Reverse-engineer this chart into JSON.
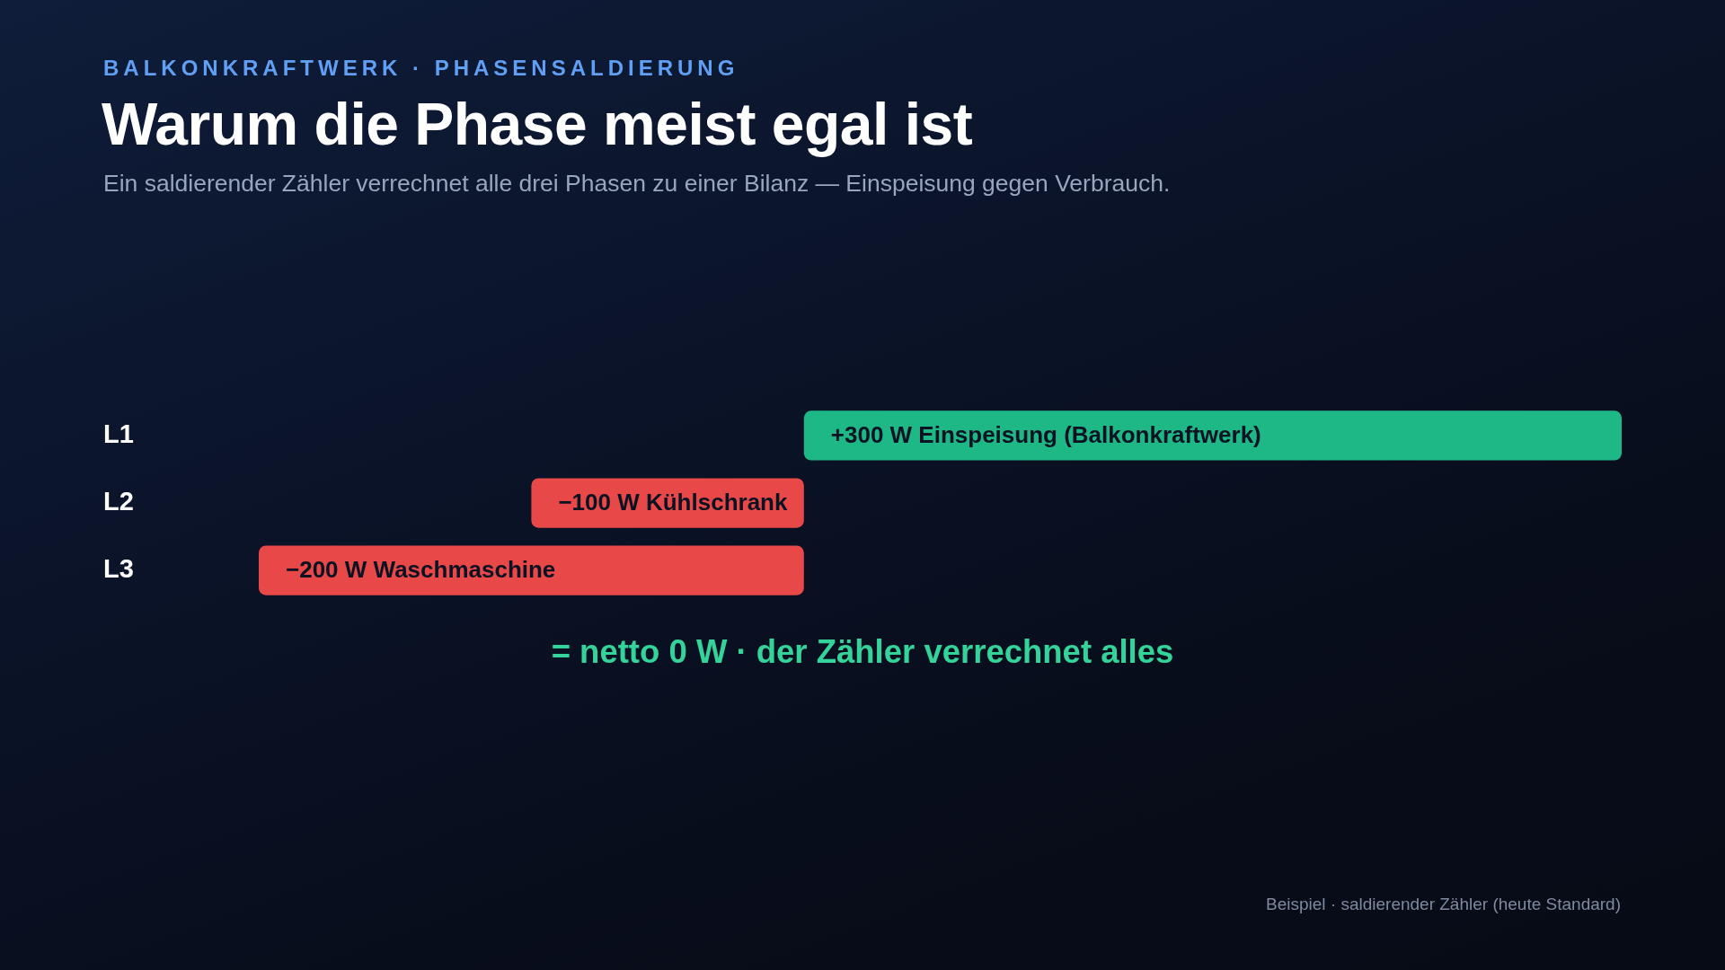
{
  "chart_data": {
    "type": "bar",
    "orientation": "horizontal",
    "title": "Warum die Phase meist egal ist",
    "subtitle": "Ein saldierender Zähler verrechnet alle drei Phasen zu einer Bilanz — Einspeisung gegen Verbrauch.",
    "categories": [
      "L1",
      "L2",
      "L3"
    ],
    "values": [
      300,
      -100,
      -200
    ],
    "colors": [
      "#1db886",
      "#e84848",
      "#e84848"
    ],
    "value_labels": [
      "+300 W Einspeisung (Balkonkraftwerk)",
      "−100 W Kühlschrank",
      "−200 W Waschmaschine"
    ],
    "tick_labels": "y",
    "grid": false,
    "legend": false,
    "annotations": [
      "BALKONKRAFTWERK · PHASENSALDIERUNG",
      "= netto 0 W · der Zähler verrechnet alles",
      "Beispiel · saldierender Zähler (heute Standard)"
    ]
  }
}
